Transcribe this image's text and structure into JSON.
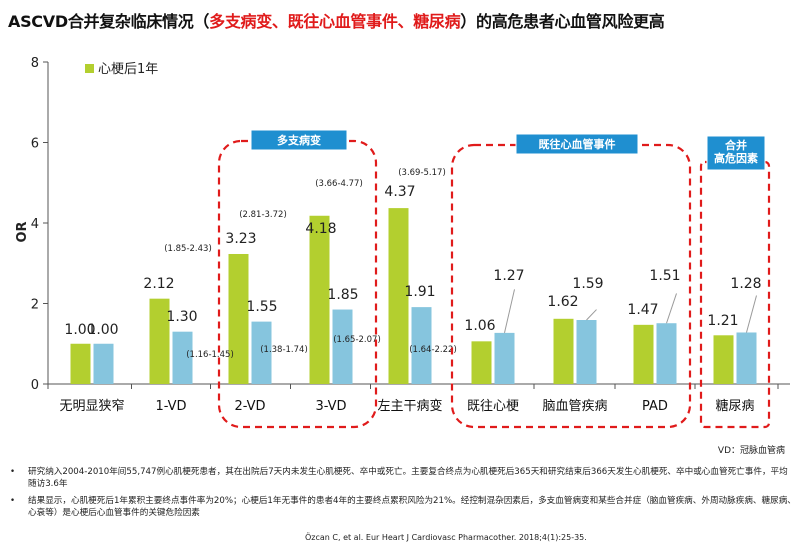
{
  "title": {
    "part1": "ASCVD合并复杂临床情况（",
    "highlight": "多支病变、既往心血管事件、糖尿病",
    "part2": "）的高危患者心血管风险更高"
  },
  "chart_data": {
    "type": "bar",
    "ylabel": "OR",
    "ylim": [
      0,
      8
    ],
    "yticks": [
      "0",
      "2",
      "4",
      "6",
      "8"
    ],
    "legend": {
      "label": "心梗后1年",
      "color": "#b3cf2f",
      "placement": "top-left"
    },
    "colors": {
      "first": "#b3cf2f",
      "second": "#86c5de",
      "highlight": "#e01b1b"
    },
    "categories": [
      "无明显狭窄",
      "1-VD",
      "2-VD",
      "3-VD",
      "左主干病变",
      "既往心梗",
      "脑血管疾病",
      "PAD",
      "糖尿病"
    ],
    "series": [
      {
        "values": [
          1.0,
          2.12,
          3.23,
          4.18,
          4.37,
          1.06,
          1.62,
          1.47,
          1.21
        ],
        "labels": [
          "1.00",
          "2.12",
          "3.23",
          "4.18",
          "4.37",
          "1.06",
          "1.62",
          "1.47",
          "1.21"
        ]
      },
      {
        "values": [
          1.0,
          1.3,
          1.55,
          1.85,
          1.91,
          1.27,
          1.59,
          1.51,
          1.28
        ],
        "labels": [
          "1.00",
          "1.30",
          "1.55",
          "1.85",
          "1.91",
          "1.27",
          "1.59",
          "1.51",
          "1.28"
        ]
      }
    ],
    "ci_labels": [
      "(1.85-2.43)",
      "(1.16-1.45)",
      "(2.81-3.72)",
      "(1.38-1.74)",
      "(3.66-4.77)",
      "(1.65-2.07)",
      "(3.69-5.17)",
      "(1.64-2.22)"
    ],
    "groups": [
      {
        "label": "多支病变",
        "categories": [
          "2-VD",
          "3-VD"
        ]
      },
      {
        "label": "既往心血管事件",
        "categories": [
          "既往心梗",
          "脑血管疾病",
          "PAD"
        ]
      },
      {
        "label": "合并\n高危因素",
        "categories": [
          "糖尿病"
        ]
      }
    ]
  },
  "vd_note": "VD：冠脉血管病",
  "notes": [
    {
      "bullet": "•",
      "text": "研究纳入2004-2010年间55,747例心肌梗死患者，其在出院后7天内未发生心肌梗死、卒中或死亡。主要复合终点为心肌梗死后365天和研究结束后366天发生心肌梗死、卒中或心血管死亡事件，平均随访3.6年"
    },
    {
      "bullet": "•",
      "text": "结果显示，心肌梗死后1年累积主要终点事件率为20%；心梗后1年无事件的患者4年的主要终点累积风险为21%。经控制混杂因素后，多支血管病变和某些合并症（脑血管疾病、外周动脉疾病、糖尿病、心衰等）是心梗后心血管事件的关键危险因素"
    }
  ],
  "citation": "Özcan C, et al. Eur Heart J Cardiovasc Pharmacother. 2018;4(1):25-35."
}
